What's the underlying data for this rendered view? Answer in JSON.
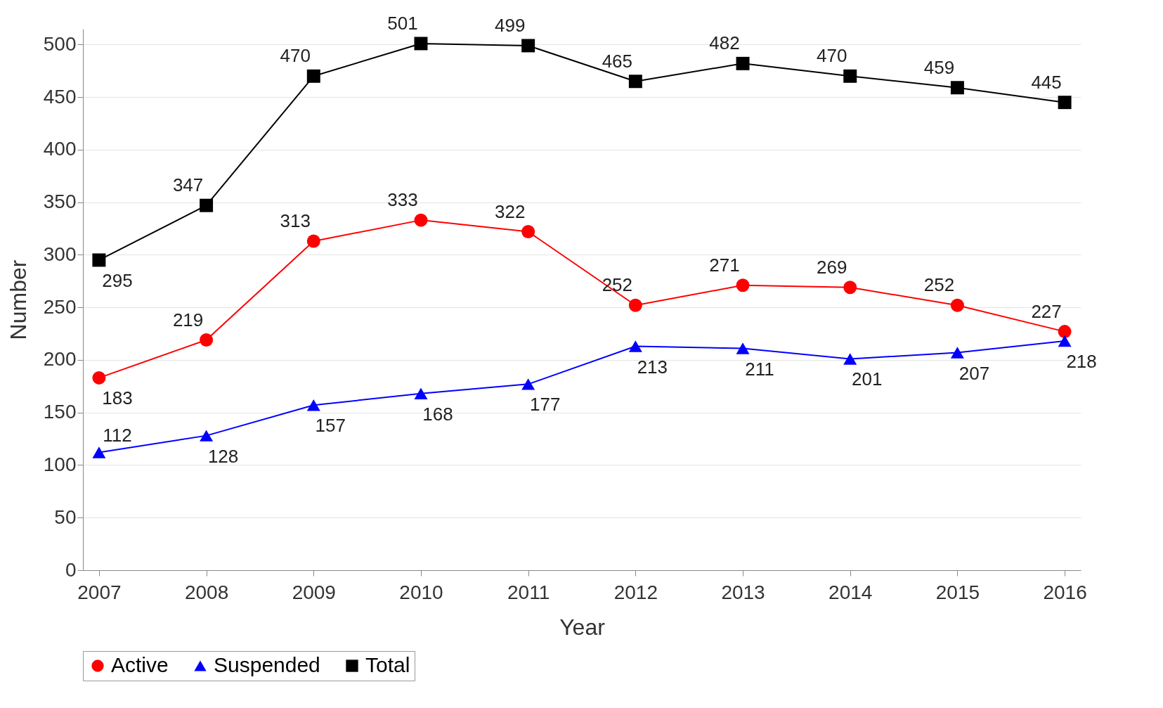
{
  "chart_data": {
    "type": "line",
    "xlabel": "Year",
    "ylabel": "Number",
    "x": [
      2007,
      2008,
      2009,
      2010,
      2011,
      2012,
      2013,
      2014,
      2015,
      2016
    ],
    "series": [
      {
        "name": "Active",
        "color": "#ff0000",
        "marker": "circle",
        "values": [
          183,
          219,
          313,
          333,
          322,
          252,
          271,
          269,
          252,
          227
        ]
      },
      {
        "name": "Suspended",
        "color": "#0000ff",
        "marker": "triangle",
        "values": [
          112,
          128,
          157,
          168,
          177,
          213,
          211,
          201,
          207,
          218
        ]
      },
      {
        "name": "Total",
        "color": "#000000",
        "marker": "square",
        "values": [
          295,
          347,
          470,
          501,
          499,
          465,
          482,
          470,
          459,
          445
        ]
      }
    ],
    "xlim": [
      2006.85,
      2016.15
    ],
    "xticks": [
      2007,
      2008,
      2009,
      2010,
      2011,
      2012,
      2013,
      2014,
      2015,
      2016
    ],
    "ylim": [
      0,
      515
    ],
    "yticks": [
      0,
      50,
      100,
      150,
      200,
      250,
      300,
      350,
      400,
      450,
      500
    ],
    "grid": "y",
    "legend": "bottom",
    "data_labels": true,
    "line_style": "solid"
  }
}
